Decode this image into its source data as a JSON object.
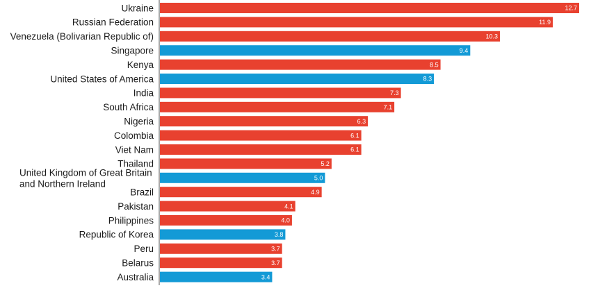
{
  "chart_data": {
    "type": "bar",
    "orientation": "horizontal",
    "categories": [
      [
        "Ukraine"
      ],
      [
        "Russian Federation"
      ],
      [
        "Venezuela (Bolivarian Republic of)"
      ],
      [
        "Singapore"
      ],
      [
        "Kenya"
      ],
      [
        "United States of America"
      ],
      [
        "India"
      ],
      [
        "South Africa"
      ],
      [
        "Nigeria"
      ],
      [
        "Colombia"
      ],
      [
        "Viet Nam"
      ],
      [
        "Thailand"
      ],
      [
        "United Kingdom of Great Britain",
        "and Northern Ireland"
      ],
      [
        "Brazil"
      ],
      [
        "Pakistan"
      ],
      [
        "Philippines"
      ],
      [
        "Republic of Korea"
      ],
      [
        "Peru"
      ],
      [
        "Belarus"
      ],
      [
        "Australia"
      ]
    ],
    "values": [
      12.7,
      11.9,
      10.3,
      9.4,
      8.5,
      8.3,
      7.3,
      7.1,
      6.3,
      6.1,
      6.1,
      5.2,
      5.0,
      4.9,
      4.1,
      4.0,
      3.8,
      3.7,
      3.7,
      3.4
    ],
    "value_labels": [
      "12.7",
      "11.9",
      "10.3",
      "9.4",
      "8.5",
      "8.3",
      "7.3",
      "7.1",
      "6.3",
      "6.1",
      "6.1",
      "5.2",
      "5.0",
      "4.9",
      "4.1",
      "4.0",
      "3.8",
      "3.7",
      "3.7",
      "3.4"
    ],
    "highlighted": [
      false,
      false,
      false,
      true,
      false,
      true,
      false,
      false,
      false,
      false,
      false,
      false,
      true,
      false,
      false,
      false,
      true,
      false,
      false,
      true
    ],
    "colors": {
      "default": "#e8412f",
      "highlight": "#139ad6",
      "axis": "#555555",
      "label_text": "#1a1a1a",
      "value_text": "#ffffff"
    },
    "xlim": [
      0,
      13.2
    ],
    "grid": false,
    "legend": "none"
  }
}
